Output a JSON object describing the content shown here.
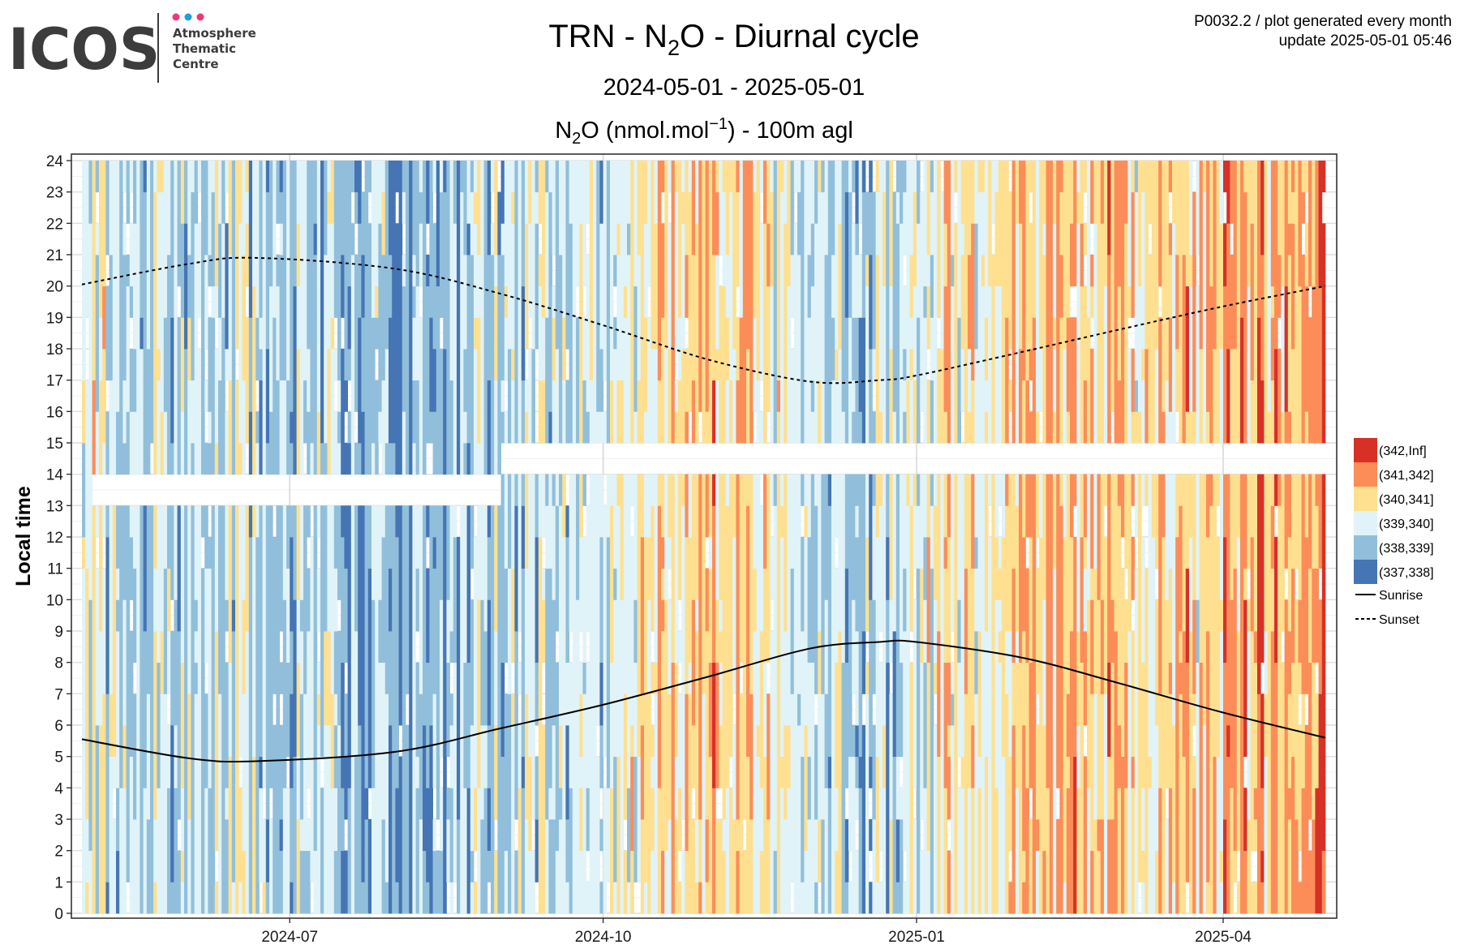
{
  "logo": {
    "text": "ICOS",
    "lines": [
      "Atmosphere",
      "Thematic",
      "Centre"
    ],
    "dot_colors": [
      "#e8397a",
      "#1f9ee0",
      "#e8397a"
    ]
  },
  "header": {
    "note_line1": "P0032.2 / plot generated every month",
    "note_line2": "update  2025-05-01 05:46"
  },
  "chart_data": {
    "type": "heatmap",
    "title": {
      "pre": "TRN - N",
      "sub": "2",
      "post": "O - Diurnal cycle"
    },
    "subtitle": "2024-05-01 - 2025-05-01",
    "measure": {
      "pre": "N",
      "sub": "2",
      "mid": "O (nmol.mol",
      "sup": "−1",
      "post": ") - 100m agl"
    },
    "ylabel": "Local time",
    "xlabel": "",
    "x_range": [
      "2024-05-01",
      "2025-05-01"
    ],
    "y_range": [
      0,
      24
    ],
    "x_ticks": [
      "2024-07",
      "2024-10",
      "2025-01",
      "2025-04"
    ],
    "x_tick_dates": [
      "2024-07-01",
      "2024-10-01",
      "2025-01-01",
      "2025-04-01"
    ],
    "y_ticks": [
      "0",
      "1",
      "2",
      "3",
      "4",
      "5",
      "6",
      "7",
      "8",
      "9",
      "10",
      "11",
      "12",
      "13",
      "14",
      "15",
      "16",
      "17",
      "18",
      "19",
      "20",
      "21",
      "22",
      "23",
      "24"
    ],
    "grid": true,
    "bins": [
      {
        "label": "(342,Inf]",
        "color": "#d73027"
      },
      {
        "label": "(341,342]",
        "color": "#fc8d59"
      },
      {
        "label": "(340,341]",
        "color": "#fee090"
      },
      {
        "label": "(339,340]",
        "color": "#e0f3f8"
      },
      {
        "label": "(338,339]",
        "color": "#91bfdb"
      },
      {
        "label": "(337,338]",
        "color": "#4575b4"
      }
    ],
    "lines": [
      {
        "name": "Sunrise",
        "style": "solid",
        "dates": [
          "2024-05-01",
          "2024-06-01",
          "2024-06-21",
          "2024-08-01",
          "2024-09-01",
          "2024-10-01",
          "2024-11-01",
          "2024-12-01",
          "2024-12-21",
          "2025-01-01",
          "2025-02-01",
          "2025-03-01",
          "2025-04-01",
          "2025-05-01"
        ],
        "hours": [
          5.55,
          4.95,
          4.85,
          5.15,
          5.9,
          6.65,
          7.55,
          8.45,
          8.65,
          8.65,
          8.15,
          7.35,
          6.4,
          5.6
        ]
      },
      {
        "name": "Sunset",
        "style": "dashed",
        "dates": [
          "2024-05-01",
          "2024-06-01",
          "2024-06-21",
          "2024-08-01",
          "2024-09-01",
          "2024-10-01",
          "2024-11-01",
          "2024-12-01",
          "2024-12-21",
          "2025-01-01",
          "2025-02-01",
          "2025-03-01",
          "2025-04-01",
          "2025-05-01"
        ],
        "hours": [
          20.05,
          20.7,
          20.9,
          20.55,
          19.75,
          18.75,
          17.65,
          16.95,
          17.0,
          17.15,
          17.9,
          18.6,
          19.35,
          20.0
        ]
      }
    ],
    "gaps": [
      {
        "from": "2024-05-04",
        "to": "2024-08-31",
        "hour_from": 13,
        "hour_to": 14
      },
      {
        "from": "2024-09-01",
        "to": "2025-05-01",
        "hour_from": 14,
        "hour_to": 15
      }
    ],
    "daily_level": {
      "dates": [
        "2024-05-01",
        "2024-05-15",
        "2024-06-01",
        "2024-06-15",
        "2024-07-01",
        "2024-07-15",
        "2024-08-01",
        "2024-08-15",
        "2024-09-01",
        "2024-09-15",
        "2024-10-01",
        "2024-10-15",
        "2024-11-01",
        "2024-11-15",
        "2024-12-01",
        "2024-12-15",
        "2025-01-01",
        "2025-01-15",
        "2025-02-01",
        "2025-02-15",
        "2025-03-01",
        "2025-03-15",
        "2025-04-01",
        "2025-04-15",
        "2025-05-01"
      ],
      "n2o": [
        339.7,
        339.3,
        339.0,
        339.4,
        339.0,
        338.9,
        338.3,
        338.5,
        339.0,
        339.3,
        339.5,
        340.2,
        340.6,
        340.0,
        339.4,
        339.2,
        339.6,
        340.2,
        340.6,
        340.7,
        340.5,
        340.4,
        340.6,
        341.0,
        341.8
      ]
    }
  }
}
